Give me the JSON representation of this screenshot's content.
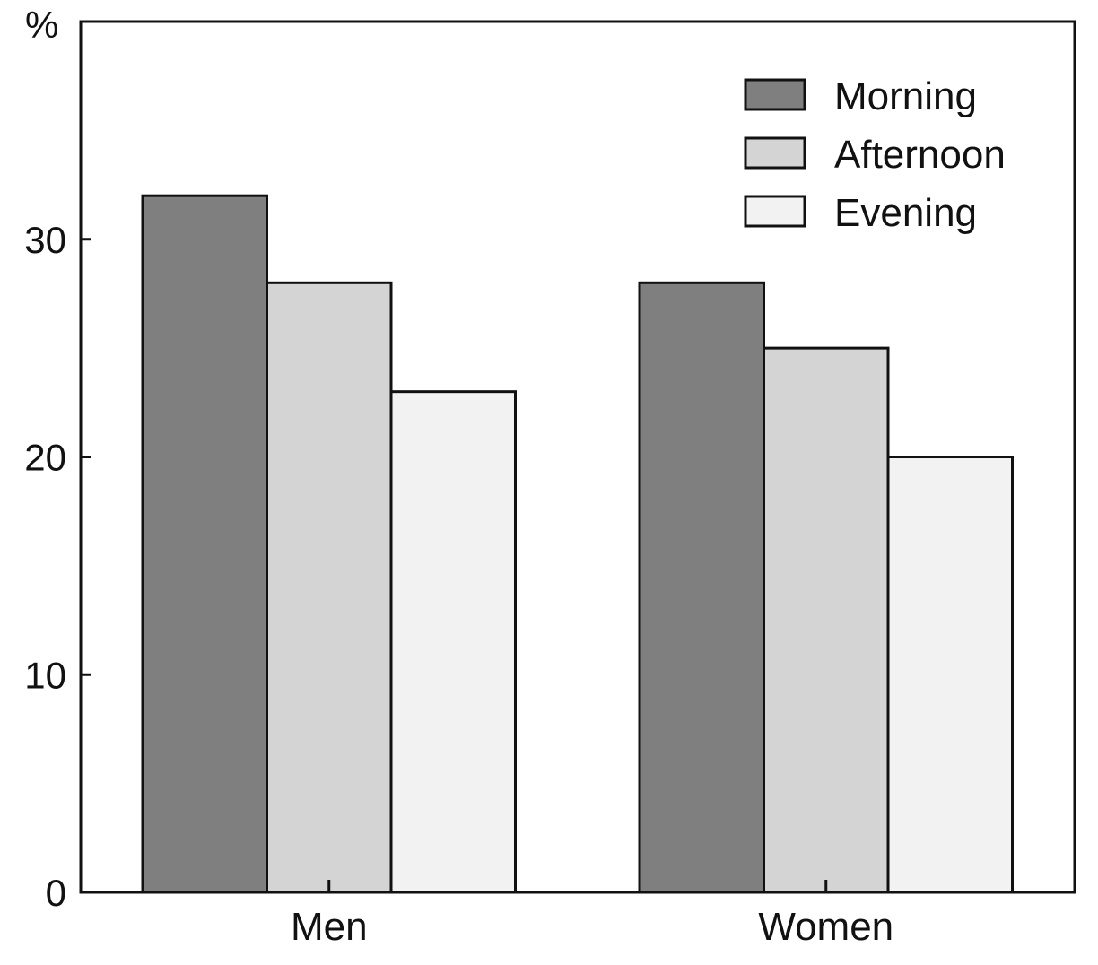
{
  "chart_data": {
    "type": "bar",
    "title": "",
    "xlabel": "",
    "ylabel": "%",
    "ylim": [
      0,
      40
    ],
    "yticks": [
      0,
      10,
      20,
      30
    ],
    "categories": [
      "Men",
      "Women"
    ],
    "series": [
      {
        "name": "Morning",
        "values": [
          32,
          28
        ],
        "color": "#7f7f7f"
      },
      {
        "name": "Afternoon",
        "values": [
          28,
          25
        ],
        "color": "#d4d4d4"
      },
      {
        "name": "Evening",
        "values": [
          23,
          20
        ],
        "color": "#f2f2f2"
      }
    ],
    "legend_position": "top-right",
    "grid": false
  }
}
